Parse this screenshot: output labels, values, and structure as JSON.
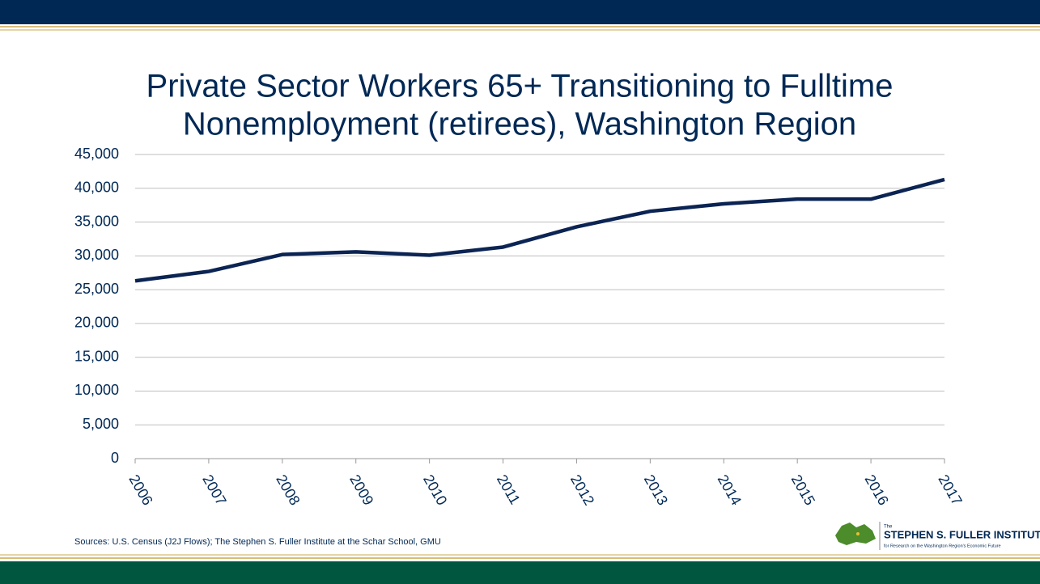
{
  "chart_data": {
    "type": "line",
    "title": "Private Sector Workers 65+ Transitioning to Fulltime",
    "subtitle": "Nonemployment (retirees), Washington Region",
    "categories": [
      "2006",
      "2007",
      "2008",
      "2009",
      "2010",
      "2011",
      "2012",
      "2013",
      "2014",
      "2015",
      "2016",
      "2017"
    ],
    "series": [
      {
        "color": "#0b2453",
        "values": [
          26300,
          27700,
          30200,
          30600,
          30100,
          31300,
          34300,
          36600,
          37700,
          38400,
          38400,
          41300
        ]
      }
    ],
    "ylim": [
      0,
      45000
    ],
    "yticks": [
      0,
      {
        "value": 5000,
        "label": "5,000"
      },
      {
        "value": 10000,
        "label": "10,000"
      },
      {
        "value": 15000,
        "label": "15,000"
      },
      {
        "value": 20000,
        "label": "20,000"
      },
      {
        "value": 25000,
        "label": "25,000"
      },
      {
        "value": 30000,
        "label": "30,000"
      },
      {
        "value": 35000,
        "label": "35,000"
      },
      {
        "value": 40000,
        "label": "40,000"
      },
      {
        "value": 45000,
        "label": "45,000"
      }
    ],
    "grid": true
  },
  "footer": {
    "source": "Sources: U.S. Census (J2J Flows); The Stephen S. Fuller Institute at the Schar School, GMU",
    "logo": {
      "pre": "The",
      "name": "STEPHEN S. FULLER INSTITUTE",
      "tagline": "for Research on the Washington Region's Economic Future"
    }
  }
}
